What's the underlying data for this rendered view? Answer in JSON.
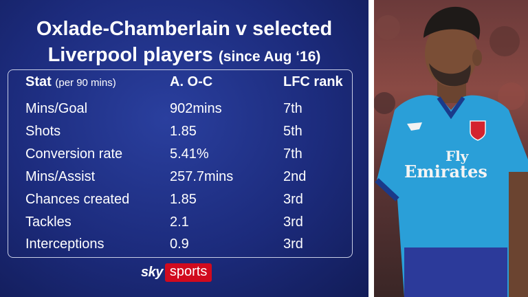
{
  "title_line1": "Oxlade-Chamberlain v selected",
  "title_line2_main": "Liverpool players",
  "title_line2_sub": "(since Aug ‘16)",
  "header": {
    "stat": "Stat",
    "per": "(per 90 mins)",
    "player": "A. O-C",
    "rank": "LFC rank"
  },
  "rows": [
    {
      "stat": "Mins/Goal",
      "value": "902mins",
      "rank": "7th"
    },
    {
      "stat": "Shots",
      "value": "1.85",
      "rank": "5th"
    },
    {
      "stat": "Conversion rate",
      "value": "5.41%",
      "rank": "7th"
    },
    {
      "stat": "Mins/Assist",
      "value": "257.7mins",
      "rank": "2nd"
    },
    {
      "stat": "Chances created",
      "value": "1.85",
      "rank": "3rd"
    },
    {
      "stat": "Tackles",
      "value": "2.1",
      "rank": "3rd"
    },
    {
      "stat": "Interceptions",
      "value": "0.9",
      "rank": "3rd"
    }
  ],
  "logo": {
    "sky": "sky",
    "sports": "sports"
  },
  "photo": {
    "sponsor_line1": "Fly",
    "sponsor_line2": "Emirates"
  },
  "colors": {
    "panel": "#1c2b7c",
    "sky_red": "#d10a1e",
    "kit_blue": "#2a9fd8"
  }
}
